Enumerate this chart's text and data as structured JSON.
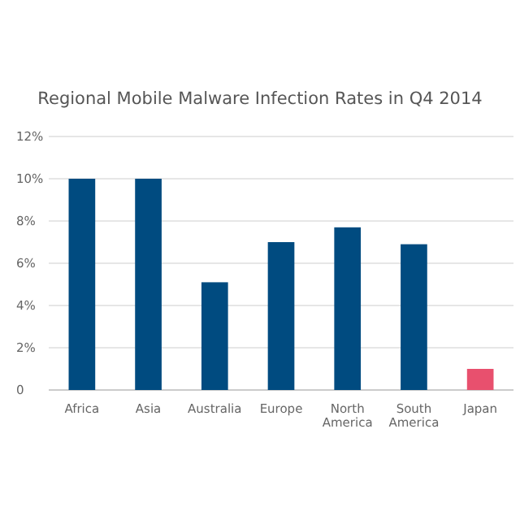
{
  "chart_data": {
    "type": "bar",
    "title": "Regional Mobile Malware Infection Rates in Q4 2014",
    "categories": [
      "Africa",
      "Asia",
      "Australia",
      "Europe",
      "North America",
      "South America",
      "Japan"
    ],
    "values": [
      10,
      10,
      5.1,
      7.0,
      7.7,
      6.9,
      1.0
    ],
    "colors": [
      "#004b80",
      "#004b80",
      "#004b80",
      "#004b80",
      "#004b80",
      "#004b80",
      "#e8506e"
    ],
    "ylim": [
      0,
      12
    ],
    "yticks": [
      {
        "value": 0,
        "label": "0"
      },
      {
        "value": 2,
        "label": "2%"
      },
      {
        "value": 4,
        "label": "4%"
      },
      {
        "value": 6,
        "label": "6%"
      },
      {
        "value": 8,
        "label": "8%"
      },
      {
        "value": 10,
        "label": "10%"
      },
      {
        "value": 12,
        "label": "12%"
      }
    ],
    "grid": "y"
  }
}
